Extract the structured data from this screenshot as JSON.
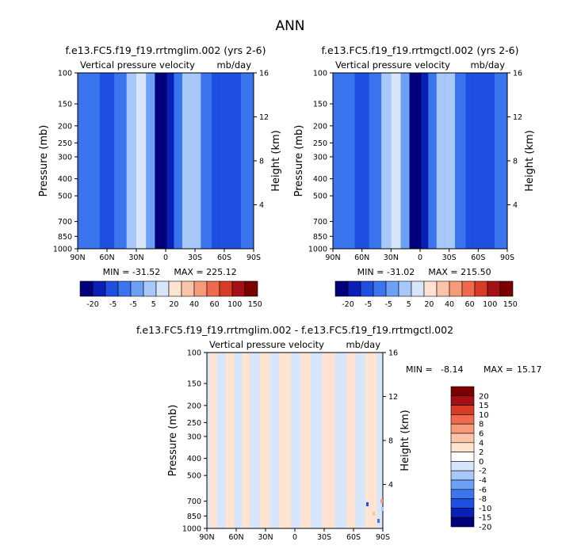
{
  "page_title": "ANN",
  "colors": {
    "deep_navy": "#00007a",
    "dark_blue": "#0a1fb5",
    "blue": "#1f4fe0",
    "mid_blue": "#3a75ee",
    "light_blue": "#6ea0f5",
    "pale_blue": "#a9c8fa",
    "paler_blue": "#d8e6fb",
    "peach": "#fde3d0",
    "light_salmon": "#fbc4a8",
    "salmon": "#f79a7a",
    "red_orange": "#ef6a4c",
    "red": "#d93a26",
    "dark_red": "#a50f15",
    "maroon": "#7a0000"
  },
  "chart_data": [
    {
      "id": "panel-left",
      "type": "heatmap",
      "title": "f.e13.FC5.f19_f19.rrtmglim.002 (yrs 2-6)",
      "subtitle_left": "Vertical pressure velocity",
      "subtitle_right": "mb/day",
      "ylabel": "Pressure (mb)",
      "ylabel_right": "Height (km)",
      "x_ticks": [
        "90N",
        "60N",
        "30N",
        "0",
        "30S",
        "60S",
        "90S"
      ],
      "y_ticks": [
        100,
        150,
        200,
        250,
        300,
        400,
        500,
        700,
        850,
        1000
      ],
      "y_ticks_right": [
        16,
        12,
        8,
        4
      ],
      "ylim": [
        1000,
        100
      ],
      "min_label": "MIN = -31.52",
      "max_label": "MAX = 225.12",
      "colorbar_labels": [
        "-20",
        "-5",
        "-5",
        "5",
        "20",
        "40",
        "60",
        "100",
        "150"
      ],
      "columns": [
        {
          "lat": 90,
          "value": -4
        },
        {
          "lat": 75,
          "value": -4
        },
        {
          "lat": 60,
          "value": -6
        },
        {
          "lat": 45,
          "value": -2
        },
        {
          "lat": 35,
          "value": 10
        },
        {
          "lat": 25,
          "value": 18
        },
        {
          "lat": 15,
          "value": 5
        },
        {
          "lat": 7,
          "value": -25
        },
        {
          "lat": 2,
          "value": -30
        },
        {
          "lat": -5,
          "value": -22
        },
        {
          "lat": -12,
          "value": -3
        },
        {
          "lat": -22,
          "value": 12
        },
        {
          "lat": -30,
          "value": 8
        },
        {
          "lat": -42,
          "value": 0
        },
        {
          "lat": -52,
          "value": -5
        },
        {
          "lat": -62,
          "value": -12
        },
        {
          "lat": -72,
          "value": -8
        },
        {
          "lat": -82,
          "value": -4
        },
        {
          "lat": -90,
          "value": -3
        }
      ]
    },
    {
      "id": "panel-right",
      "type": "heatmap",
      "title": "f.e13.FC5.f19_f19.rrtmgctl.002 (yrs 2-6)",
      "subtitle_left": "Vertical pressure velocity",
      "subtitle_right": "mb/day",
      "ylabel": "Pressure (mb)",
      "ylabel_right": "Height (km)",
      "x_ticks": [
        "90N",
        "60N",
        "30N",
        "0",
        "30S",
        "60S",
        "90S"
      ],
      "y_ticks": [
        100,
        150,
        200,
        250,
        300,
        400,
        500,
        700,
        850,
        1000
      ],
      "y_ticks_right": [
        16,
        12,
        8,
        4
      ],
      "ylim": [
        1000,
        100
      ],
      "min_label": "MIN = -31.02",
      "max_label": "MAX = 215.50",
      "colorbar_labels": [
        "-20",
        "-5",
        "-5",
        "5",
        "20",
        "40",
        "60",
        "100",
        "150"
      ],
      "columns": [
        {
          "lat": 90,
          "value": -4
        },
        {
          "lat": 75,
          "value": -4
        },
        {
          "lat": 60,
          "value": -6
        },
        {
          "lat": 45,
          "value": -2
        },
        {
          "lat": 35,
          "value": 10
        },
        {
          "lat": 25,
          "value": 17
        },
        {
          "lat": 15,
          "value": 5
        },
        {
          "lat": 7,
          "value": -25
        },
        {
          "lat": 2,
          "value": -30
        },
        {
          "lat": -5,
          "value": -22
        },
        {
          "lat": -12,
          "value": -3
        },
        {
          "lat": -22,
          "value": 12
        },
        {
          "lat": -30,
          "value": 8
        },
        {
          "lat": -42,
          "value": 0
        },
        {
          "lat": -52,
          "value": -5
        },
        {
          "lat": -62,
          "value": -12
        },
        {
          "lat": -72,
          "value": -8
        },
        {
          "lat": -82,
          "value": -4
        },
        {
          "lat": -90,
          "value": -3
        }
      ]
    },
    {
      "id": "panel-diff",
      "type": "heatmap",
      "title": "f.e13.FC5.f19_f19.rrtmglim.002 - f.e13.FC5.f19_f19.rrtmgctl.002",
      "subtitle_left": "Vertical pressure velocity",
      "subtitle_right": "mb/day",
      "ylabel": "Pressure (mb)",
      "ylabel_right": "Height (km)",
      "x_ticks": [
        "90N",
        "60N",
        "30N",
        "0",
        "30S",
        "60S",
        "90S"
      ],
      "y_ticks": [
        100,
        150,
        200,
        250,
        300,
        400,
        500,
        700,
        850,
        1000
      ],
      "y_ticks_right": [
        16,
        12,
        8,
        4
      ],
      "ylim": [
        1000,
        100
      ],
      "min_label": "MIN =",
      "min_value": "-8.14",
      "max_label": "MAX =",
      "max_value": "15.17",
      "colorbar_labels": [
        "20",
        "15",
        "10",
        "8",
        "6",
        "4",
        "2",
        "0",
        "-2",
        "-4",
        "-6",
        "-8",
        "-10",
        "-15",
        "-20"
      ],
      "columns": [
        {
          "lat": 90,
          "value": -0.5
        },
        {
          "lat": 84,
          "value": 0.5
        },
        {
          "lat": 76,
          "value": -0.5
        },
        {
          "lat": 66,
          "value": 0.5
        },
        {
          "lat": 58,
          "value": -0.5
        },
        {
          "lat": 50,
          "value": 0.5
        },
        {
          "lat": 42,
          "value": -0.5
        },
        {
          "lat": 30,
          "value": 0.5
        },
        {
          "lat": 22,
          "value": -0.5
        },
        {
          "lat": 10,
          "value": 0.5
        },
        {
          "lat": -2,
          "value": -0.5
        },
        {
          "lat": -10,
          "value": 0.5
        },
        {
          "lat": -22,
          "value": -0.5
        },
        {
          "lat": -34,
          "value": 0.5
        },
        {
          "lat": -48,
          "value": -0.5
        },
        {
          "lat": -58,
          "value": 0.5
        },
        {
          "lat": -66,
          "value": -0.5
        },
        {
          "lat": -78,
          "value": 0.5
        },
        {
          "lat": -90,
          "value": -0.5
        }
      ]
    }
  ]
}
